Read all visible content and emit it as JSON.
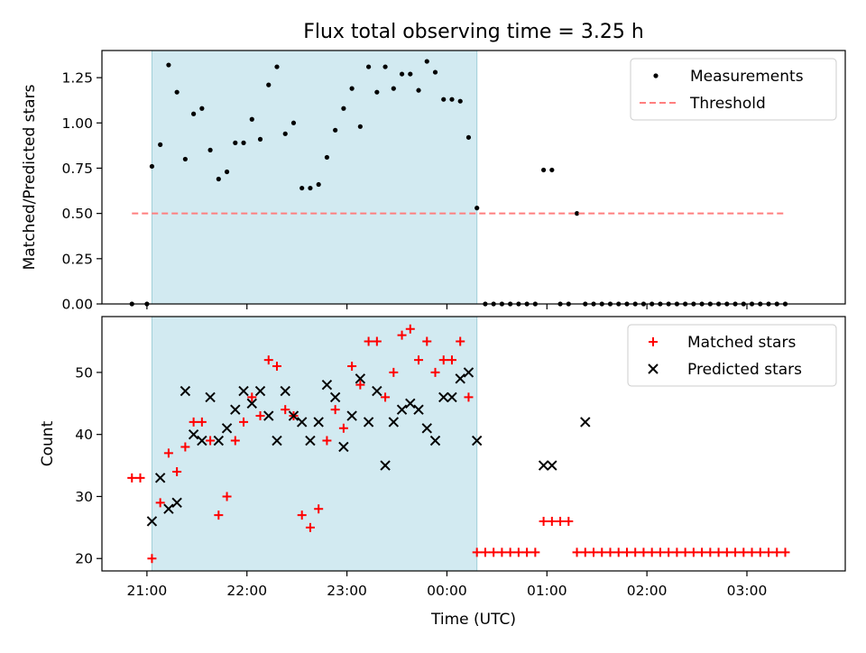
{
  "title": "Flux total observing time = 3.25 h",
  "xlabel": "Time (UTC)",
  "x_ticks": [
    "21:00",
    "22:00",
    "23:00",
    "00:00",
    "01:00",
    "02:00",
    "03:00"
  ],
  "colors": {
    "measurement": "#000000",
    "threshold": "#ff7f7f",
    "matched": "#ff0000",
    "predicted": "#000000",
    "span": "#add8e6"
  },
  "chart_data": [
    {
      "type": "scatter",
      "ylabel": "Matched/Predicted stars",
      "ylim": [
        0,
        1.4
      ],
      "y_ticks": [
        "0.00",
        "0.25",
        "0.50",
        "0.75",
        "1.00",
        "1.25"
      ],
      "xlim": [
        "20:33",
        "03:59"
      ],
      "shaded_span": [
        "21:03",
        "00:18"
      ],
      "legend_position": "top-right",
      "series": [
        {
          "name": "Measurements",
          "marker": "dot",
          "x": [
            "20:51",
            "21:00",
            "21:03",
            "21:08",
            "21:13",
            "21:18",
            "21:23",
            "21:28",
            "21:33",
            "21:38",
            "21:43",
            "21:48",
            "21:53",
            "21:58",
            "22:03",
            "22:08",
            "22:13",
            "22:18",
            "22:23",
            "22:28",
            "22:33",
            "22:38",
            "22:43",
            "22:48",
            "22:53",
            "22:58",
            "23:03",
            "23:08",
            "23:13",
            "23:18",
            "23:23",
            "23:28",
            "23:33",
            "23:38",
            "23:43",
            "23:48",
            "23:53",
            "23:58",
            "00:03",
            "00:08",
            "00:13",
            "00:18",
            "00:23",
            "00:28",
            "00:33",
            "00:38",
            "00:43",
            "00:48",
            "00:53",
            "00:58",
            "01:03",
            "01:08",
            "01:13",
            "01:18",
            "01:23",
            "01:28",
            "01:33",
            "01:38",
            "01:43",
            "01:48",
            "01:53",
            "01:58",
            "02:03",
            "02:08",
            "02:13",
            "02:18",
            "02:23",
            "02:28",
            "02:33",
            "02:38",
            "02:43",
            "02:48",
            "02:53",
            "02:58",
            "03:03",
            "03:08",
            "03:13",
            "03:18",
            "03:23"
          ],
          "y": [
            0,
            0,
            0.76,
            0.88,
            1.32,
            1.17,
            0.8,
            1.05,
            1.08,
            0.85,
            0.69,
            0.73,
            0.89,
            0.89,
            1.02,
            0.91,
            1.21,
            1.31,
            0.94,
            1.0,
            0.64,
            0.64,
            0.66,
            0.81,
            0.96,
            1.08,
            1.19,
            0.98,
            1.31,
            1.17,
            1.31,
            1.19,
            1.27,
            1.27,
            1.18,
            1.34,
            1.28,
            1.13,
            1.13,
            1.12,
            0.92,
            0.53,
            0,
            0,
            0,
            0,
            0,
            0,
            0,
            0.74,
            0.74,
            0,
            0,
            0.5,
            0,
            0,
            0,
            0,
            0,
            0,
            0,
            0,
            0,
            0,
            0,
            0,
            0,
            0,
            0,
            0,
            0,
            0,
            0,
            0,
            0,
            0,
            0,
            0,
            0
          ]
        },
        {
          "name": "Threshold",
          "style": "dashed",
          "x": [
            "20:51",
            "03:23"
          ],
          "y": [
            0.5,
            0.5
          ]
        }
      ]
    },
    {
      "type": "scatter",
      "ylabel": "Count",
      "ylim": [
        18,
        59
      ],
      "y_ticks": [
        "20",
        "30",
        "40",
        "50"
      ],
      "xlim": [
        "20:33",
        "03:59"
      ],
      "shaded_span": [
        "21:03",
        "00:18"
      ],
      "legend_position": "top-right",
      "series": [
        {
          "name": "Matched stars",
          "marker": "plus",
          "x": [
            "20:51",
            "20:56",
            "21:03",
            "21:08",
            "21:13",
            "21:18",
            "21:23",
            "21:28",
            "21:33",
            "21:38",
            "21:43",
            "21:48",
            "21:53",
            "21:58",
            "22:03",
            "22:08",
            "22:13",
            "22:18",
            "22:23",
            "22:28",
            "22:33",
            "22:38",
            "22:43",
            "22:48",
            "22:53",
            "22:58",
            "23:03",
            "23:08",
            "23:13",
            "23:18",
            "23:23",
            "23:28",
            "23:33",
            "23:38",
            "23:43",
            "23:48",
            "23:53",
            "23:58",
            "00:03",
            "00:08",
            "00:13",
            "00:18",
            "00:23",
            "00:28",
            "00:33",
            "00:38",
            "00:43",
            "00:48",
            "00:53",
            "00:58",
            "01:03",
            "01:08",
            "01:13",
            "01:18",
            "01:23",
            "01:28",
            "01:33",
            "01:38",
            "01:43",
            "01:48",
            "01:53",
            "01:58",
            "02:03",
            "02:08",
            "02:13",
            "02:18",
            "02:23",
            "02:28",
            "02:33",
            "02:38",
            "02:43",
            "02:48",
            "02:53",
            "02:58",
            "03:03",
            "03:08",
            "03:13",
            "03:18",
            "03:23"
          ],
          "y": [
            33,
            33,
            20,
            29,
            37,
            34,
            38,
            42,
            42,
            39,
            27,
            30,
            39,
            42,
            46,
            43,
            52,
            51,
            44,
            43,
            27,
            25,
            28,
            39,
            44,
            41,
            51,
            48,
            55,
            55,
            46,
            50,
            56,
            57,
            52,
            55,
            50,
            52,
            52,
            55,
            46,
            21,
            21,
            21,
            21,
            21,
            21,
            21,
            21,
            26,
            26,
            26,
            26,
            21,
            21,
            21,
            21,
            21,
            21,
            21,
            21,
            21,
            21,
            21,
            21,
            21,
            21,
            21,
            21,
            21,
            21,
            21,
            21,
            21,
            21,
            21,
            21,
            21,
            21
          ]
        },
        {
          "name": "Predicted stars",
          "marker": "x",
          "x": [
            "21:03",
            "21:08",
            "21:13",
            "21:18",
            "21:23",
            "21:28",
            "21:33",
            "21:38",
            "21:43",
            "21:48",
            "21:53",
            "21:58",
            "22:03",
            "22:08",
            "22:13",
            "22:18",
            "22:23",
            "22:28",
            "22:33",
            "22:38",
            "22:43",
            "22:48",
            "22:53",
            "22:58",
            "23:03",
            "23:08",
            "23:13",
            "23:18",
            "23:23",
            "23:28",
            "23:33",
            "23:38",
            "23:43",
            "23:48",
            "23:53",
            "23:58",
            "00:03",
            "00:08",
            "00:13",
            "00:18",
            "00:58",
            "01:03",
            "01:23"
          ],
          "y": [
            26,
            33,
            28,
            29,
            47,
            40,
            39,
            46,
            39,
            41,
            44,
            47,
            45,
            47,
            43,
            39,
            47,
            43,
            42,
            39,
            42,
            48,
            46,
            38,
            43,
            49,
            42,
            47,
            35,
            42,
            44,
            45,
            44,
            41,
            39,
            46,
            46,
            49,
            50,
            39,
            35,
            35,
            42
          ]
        }
      ]
    }
  ]
}
